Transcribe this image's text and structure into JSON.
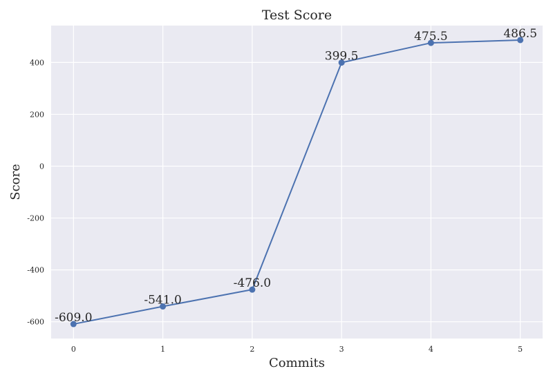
{
  "chart_data": {
    "type": "line",
    "title": "Test Score",
    "xlabel": "Commits",
    "ylabel": "Score",
    "x": [
      0,
      1,
      2,
      3,
      4,
      5
    ],
    "series": [
      {
        "values": [
          -609.0,
          -541.0,
          -476.0,
          399.5,
          475.5,
          486.5
        ]
      }
    ],
    "data_labels": [
      "-609.0",
      "-541.0",
      "-476.0",
      "399.5",
      "475.5",
      "486.5"
    ],
    "xticks": [
      0,
      1,
      2,
      3,
      4,
      5
    ],
    "xtick_labels": [
      "0",
      "1",
      "2",
      "3",
      "4",
      "5"
    ],
    "yticks": [
      -600,
      -400,
      -200,
      0,
      200,
      400
    ],
    "ytick_labels": [
      "-600",
      "-400",
      "-200",
      "0",
      "200",
      "400"
    ],
    "xlim": [
      -0.25,
      5.25
    ],
    "ylim": [
      -664.8,
      542.3
    ],
    "grid": true,
    "colors": {
      "background": "#eaeaf2",
      "line": "#4c72b0",
      "grid": "#ffffff"
    }
  }
}
